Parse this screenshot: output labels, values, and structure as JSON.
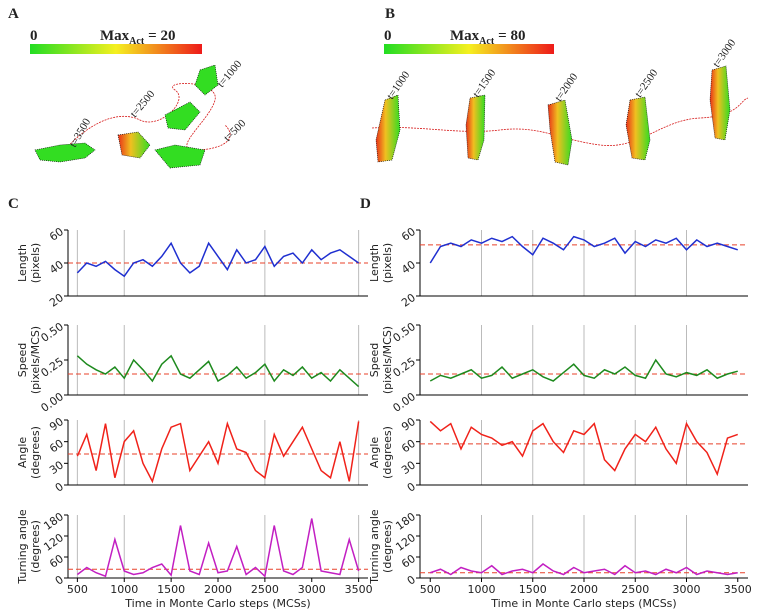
{
  "panels": {
    "A": {
      "label": "A",
      "cbar_min": "0",
      "cbar_max": "Max",
      "cbar_sub": "Act",
      "cbar_eq": "= 20",
      "time_labels": [
        "t=3500",
        "t=2500",
        "t=1000",
        "t=500"
      ]
    },
    "B": {
      "label": "B",
      "cbar_min": "0",
      "cbar_max": "Max",
      "cbar_sub": "Act",
      "cbar_eq": "= 80",
      "time_labels": [
        "t=1000",
        "t=1500",
        "t=2000",
        "t=2500",
        "t=3000"
      ]
    }
  },
  "chart_data": [
    {
      "type": "line",
      "panel_label": "C",
      "ylabel": [
        "Length",
        "(pixels)"
      ],
      "xlim": [
        400,
        3600
      ],
      "ylim": [
        20,
        60
      ],
      "yticks": [
        20,
        40,
        60
      ],
      "vlines": [
        500,
        1000,
        2500,
        3500
      ],
      "mean": 40,
      "mean_color": "#e8402a",
      "x": [
        500,
        600,
        700,
        800,
        900,
        1000,
        1100,
        1200,
        1300,
        1400,
        1500,
        1600,
        1700,
        1800,
        1900,
        2000,
        2100,
        2200,
        2300,
        2400,
        2500,
        2600,
        2700,
        2800,
        2900,
        3000,
        3100,
        3200,
        3300,
        3400,
        3500
      ],
      "series": [
        {
          "color": "#1f2fd0",
          "values": [
            34,
            40,
            38,
            41,
            36,
            32,
            40,
            42,
            38,
            44,
            52,
            40,
            34,
            38,
            52,
            44,
            36,
            48,
            40,
            42,
            50,
            38,
            44,
            46,
            40,
            48,
            42,
            46,
            48,
            44,
            40
          ]
        }
      ]
    },
    {
      "type": "line",
      "ylabel": [
        "Speed",
        "(pixels/MCS)"
      ],
      "xlim": [
        400,
        3600
      ],
      "ylim": [
        0,
        0.5
      ],
      "yticks": [
        {
          "value": 0,
          "label": "0.00"
        },
        {
          "value": 0.25,
          "label": "0.25"
        },
        {
          "value": 0.5,
          "label": "0.50"
        }
      ],
      "vlines": [
        500,
        1000,
        2500,
        3500
      ],
      "mean": 0.15,
      "mean_color": "#e8402a",
      "x": [
        500,
        600,
        700,
        800,
        900,
        1000,
        1100,
        1200,
        1300,
        1400,
        1500,
        1600,
        1700,
        1800,
        1900,
        2000,
        2100,
        2200,
        2300,
        2400,
        2500,
        2600,
        2700,
        2800,
        2900,
        3000,
        3100,
        3200,
        3300,
        3400,
        3500
      ],
      "series": [
        {
          "color": "#1e8a1e",
          "values": [
            0.28,
            0.22,
            0.18,
            0.15,
            0.2,
            0.12,
            0.25,
            0.18,
            0.1,
            0.22,
            0.28,
            0.15,
            0.12,
            0.18,
            0.24,
            0.1,
            0.14,
            0.2,
            0.12,
            0.16,
            0.22,
            0.1,
            0.18,
            0.14,
            0.2,
            0.12,
            0.16,
            0.1,
            0.18,
            0.12,
            0.06
          ]
        }
      ]
    },
    {
      "type": "line",
      "ylabel": [
        "Angle",
        "(degrees)"
      ],
      "xlim": [
        400,
        3600
      ],
      "ylim": [
        0,
        90
      ],
      "yticks": [
        0,
        30,
        60,
        90
      ],
      "vlines": [
        500,
        1000,
        2500,
        3500
      ],
      "mean": 43,
      "mean_color": "#e8402a",
      "x": [
        500,
        600,
        700,
        800,
        900,
        1000,
        1100,
        1200,
        1300,
        1400,
        1500,
        1600,
        1700,
        1800,
        1900,
        2000,
        2100,
        2200,
        2300,
        2400,
        2500,
        2600,
        2700,
        2800,
        2900,
        3000,
        3100,
        3200,
        3300,
        3400,
        3500
      ],
      "series": [
        {
          "color": "#f0221a",
          "values": [
            40,
            70,
            20,
            85,
            10,
            60,
            75,
            30,
            5,
            50,
            80,
            85,
            20,
            40,
            60,
            30,
            85,
            50,
            45,
            20,
            10,
            70,
            40,
            60,
            80,
            50,
            20,
            10,
            60,
            5,
            88
          ]
        }
      ]
    },
    {
      "type": "line",
      "ylabel": [
        "Turning angle",
        "(degrees)"
      ],
      "xlabel": "Time in Monte Carlo steps (MCSs)",
      "xlim": [
        400,
        3600
      ],
      "ylim": [
        0,
        180
      ],
      "yticks": [
        0,
        60,
        120,
        180
      ],
      "xticks": [
        500,
        1000,
        1500,
        2000,
        2500,
        3000,
        3500
      ],
      "vlines": [
        500,
        1000,
        2500,
        3500
      ],
      "mean": 25,
      "mean_color": "#e8402a",
      "x": [
        500,
        600,
        700,
        800,
        900,
        1000,
        1100,
        1200,
        1300,
        1400,
        1500,
        1600,
        1700,
        1800,
        1900,
        2000,
        2100,
        2200,
        2300,
        2400,
        2500,
        2600,
        2700,
        2800,
        2900,
        3000,
        3100,
        3200,
        3300,
        3400,
        3500
      ],
      "series": [
        {
          "color": "#c21fc2",
          "values": [
            10,
            30,
            15,
            5,
            110,
            20,
            10,
            15,
            30,
            40,
            8,
            150,
            20,
            10,
            100,
            15,
            20,
            90,
            10,
            30,
            5,
            150,
            20,
            10,
            30,
            170,
            20,
            15,
            10,
            110,
            20
          ]
        }
      ]
    },
    {
      "type": "line",
      "panel_label": "D",
      "ylabel": [
        "Length",
        "(pixels)"
      ],
      "xlim": [
        400,
        3600
      ],
      "ylim": [
        20,
        60
      ],
      "yticks": [
        20,
        40,
        60
      ],
      "vlines": [
        1000,
        1500,
        2000,
        2500,
        3000
      ],
      "mean": 51,
      "mean_color": "#e8402a",
      "x": [
        500,
        600,
        700,
        800,
        900,
        1000,
        1100,
        1200,
        1300,
        1400,
        1500,
        1600,
        1700,
        1800,
        1900,
        2000,
        2100,
        2200,
        2300,
        2400,
        2500,
        2600,
        2700,
        2800,
        2900,
        3000,
        3100,
        3200,
        3300,
        3400,
        3500
      ],
      "series": [
        {
          "color": "#1f2fd0",
          "values": [
            40,
            50,
            52,
            50,
            54,
            52,
            55,
            53,
            56,
            50,
            45,
            55,
            52,
            48,
            56,
            54,
            50,
            52,
            55,
            46,
            53,
            50,
            54,
            52,
            55,
            48,
            54,
            50,
            52,
            50,
            48
          ]
        }
      ]
    },
    {
      "type": "line",
      "ylabel": [
        "Speed",
        "(pixels/MCS)"
      ],
      "xlim": [
        400,
        3600
      ],
      "ylim": [
        0,
        0.5
      ],
      "yticks": [
        {
          "value": 0,
          "label": "0.00"
        },
        {
          "value": 0.25,
          "label": "0.25"
        },
        {
          "value": 0.5,
          "label": "0.50"
        }
      ],
      "vlines": [
        1000,
        1500,
        2000,
        2500,
        3000
      ],
      "mean": 0.15,
      "mean_color": "#e8402a",
      "x": [
        500,
        600,
        700,
        800,
        900,
        1000,
        1100,
        1200,
        1300,
        1400,
        1500,
        1600,
        1700,
        1800,
        1900,
        2000,
        2100,
        2200,
        2300,
        2400,
        2500,
        2600,
        2700,
        2800,
        2900,
        3000,
        3100,
        3200,
        3300,
        3400,
        3500
      ],
      "series": [
        {
          "color": "#1e8a1e",
          "values": [
            0.1,
            0.14,
            0.12,
            0.15,
            0.18,
            0.12,
            0.14,
            0.2,
            0.12,
            0.15,
            0.18,
            0.13,
            0.1,
            0.16,
            0.22,
            0.14,
            0.12,
            0.18,
            0.15,
            0.2,
            0.14,
            0.12,
            0.25,
            0.15,
            0.13,
            0.16,
            0.14,
            0.18,
            0.12,
            0.15,
            0.17
          ]
        }
      ]
    },
    {
      "type": "line",
      "ylabel": [
        "Angle",
        "(degrees)"
      ],
      "xlim": [
        400,
        3600
      ],
      "ylim": [
        0,
        90
      ],
      "yticks": [
        0,
        30,
        60,
        90
      ],
      "vlines": [
        1000,
        1500,
        2000,
        2500,
        3000
      ],
      "mean": 57,
      "mean_color": "#e8402a",
      "x": [
        500,
        600,
        700,
        800,
        900,
        1000,
        1100,
        1200,
        1300,
        1400,
        1500,
        1600,
        1700,
        1800,
        1900,
        2000,
        2100,
        2200,
        2300,
        2400,
        2500,
        2600,
        2700,
        2800,
        2900,
        3000,
        3100,
        3200,
        3300,
        3400,
        3500
      ],
      "series": [
        {
          "color": "#f0221a",
          "values": [
            88,
            75,
            85,
            50,
            80,
            70,
            65,
            55,
            60,
            40,
            75,
            85,
            60,
            45,
            75,
            70,
            85,
            35,
            20,
            50,
            70,
            60,
            80,
            50,
            30,
            85,
            60,
            45,
            15,
            65,
            70
          ]
        }
      ]
    },
    {
      "type": "line",
      "ylabel": [
        "Turning angle",
        "(degrees)"
      ],
      "xlabel": "Time in Monte Carlo steps (MCSs)",
      "xlim": [
        400,
        3600
      ],
      "ylim": [
        0,
        180
      ],
      "yticks": [
        0,
        60,
        120,
        180
      ],
      "xticks": [
        500,
        1000,
        1500,
        2000,
        2500,
        3000,
        3500
      ],
      "vlines": [
        1000,
        1500,
        2000,
        2500,
        3000
      ],
      "mean": 15,
      "mean_color": "#e8402a",
      "x": [
        500,
        600,
        700,
        800,
        900,
        1000,
        1100,
        1200,
        1300,
        1400,
        1500,
        1600,
        1700,
        1800,
        1900,
        2000,
        2100,
        2200,
        2300,
        2400,
        2500,
        2600,
        2700,
        2800,
        2900,
        3000,
        3100,
        3200,
        3300,
        3400,
        3500
      ],
      "series": [
        {
          "color": "#c21fc2",
          "values": [
            15,
            25,
            10,
            30,
            20,
            15,
            35,
            10,
            20,
            25,
            15,
            40,
            20,
            10,
            30,
            15,
            20,
            25,
            10,
            35,
            15,
            20,
            10,
            25,
            15,
            30,
            10,
            20,
            15,
            10,
            15
          ]
        }
      ]
    }
  ]
}
